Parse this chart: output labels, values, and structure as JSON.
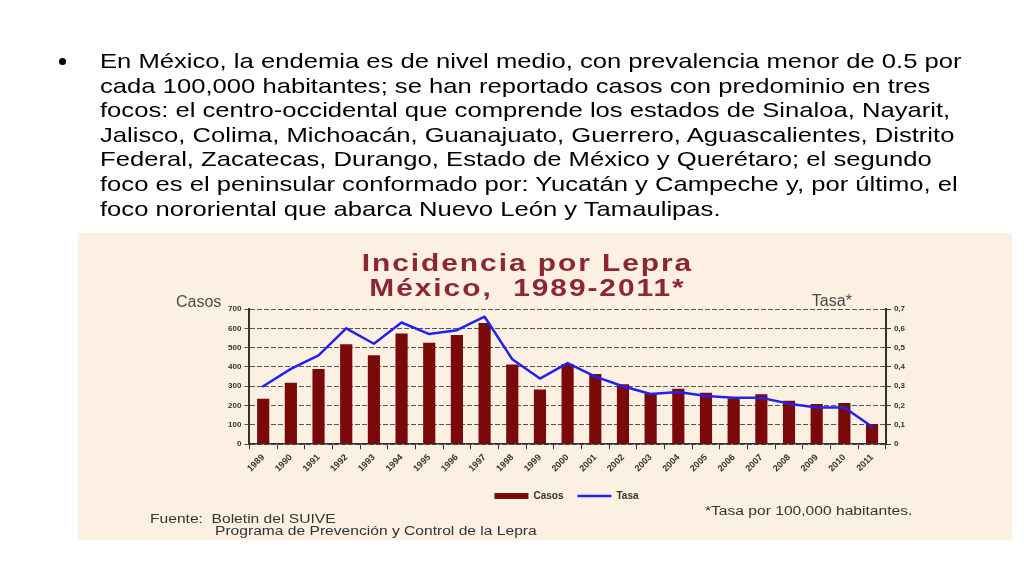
{
  "chart_data": {
    "type": "bar",
    "title": "Incidencia por Lepra\nMéxico,  1989-2011*",
    "ylabel": "Casos",
    "y2label": "Tasa*",
    "categories": [
      "1989",
      "1990",
      "1991",
      "1992",
      "1993",
      "1994",
      "1995",
      "1996",
      "1997",
      "1998",
      "1999",
      "2000",
      "2001",
      "2002",
      "2003",
      "2004",
      "2005",
      "2006",
      "2007",
      "2008",
      "2009",
      "2010",
      "2011"
    ],
    "series": [
      {
        "name": "Casos",
        "color": "#7a0a0a",
        "values": [
          235,
          318,
          390,
          518,
          460,
          573,
          525,
          565,
          628,
          413,
          283,
          415,
          363,
          310,
          263,
          287,
          267,
          237,
          258,
          225,
          208,
          213,
          105
        ]
      },
      {
        "name": "Tasa",
        "type": "line",
        "axis": "y2",
        "color": "#2222ee",
        "values": [
          0.3,
          0.39,
          0.46,
          0.6,
          0.52,
          0.63,
          0.57,
          0.59,
          0.66,
          0.44,
          0.34,
          0.42,
          0.35,
          0.3,
          0.26,
          0.27,
          0.25,
          0.24,
          0.24,
          0.21,
          0.19,
          0.19,
          0.09
        ]
      }
    ],
    "ylim": [
      0,
      700
    ],
    "yticks": [
      0,
      100,
      200,
      300,
      400,
      500,
      600,
      700
    ],
    "y2lim": [
      0,
      0.7
    ],
    "y2ticks": [
      0,
      {
        "value": 0.1,
        "label": "0,1"
      },
      {
        "value": 0.2,
        "label": "0,2"
      },
      {
        "value": 0.3,
        "label": "0,3"
      },
      {
        "value": 0.4,
        "label": "0,4"
      },
      {
        "value": 0.5,
        "label": "0,5"
      },
      {
        "value": 0.6,
        "label": "0,6"
      },
      {
        "value": 0.7,
        "label": "0,7"
      }
    ],
    "grid": "y",
    "legend": "bottom",
    "marker": "none",
    "line_style": "solid",
    "annotations": [
      "En México, la endemia es de nivel medio, con prevalencia menor de 0.5 por cada 100,000 habitantes; se han reportado casos con predominio en tres focos: el centro-occidental que comprende los estados de Sinaloa, Nayarit, Jalisco, Colima, Michoacán, Guanajuato, Guerrero, Aguascalientes, Distrito Federal, Zacatecas, Durango, Estado de México y Querétaro; el segundo foco es el peninsular conformado por: Yucatán y Campeche y, por último, el foco nororiental que abarca Nuevo León y Tamaulipas.",
      "*Tasa por 100,000 habitantes.",
      "Fuente:  Boletin del SUIVE\nPrograma de Prevención y Control de la Lepra"
    ]
  }
}
